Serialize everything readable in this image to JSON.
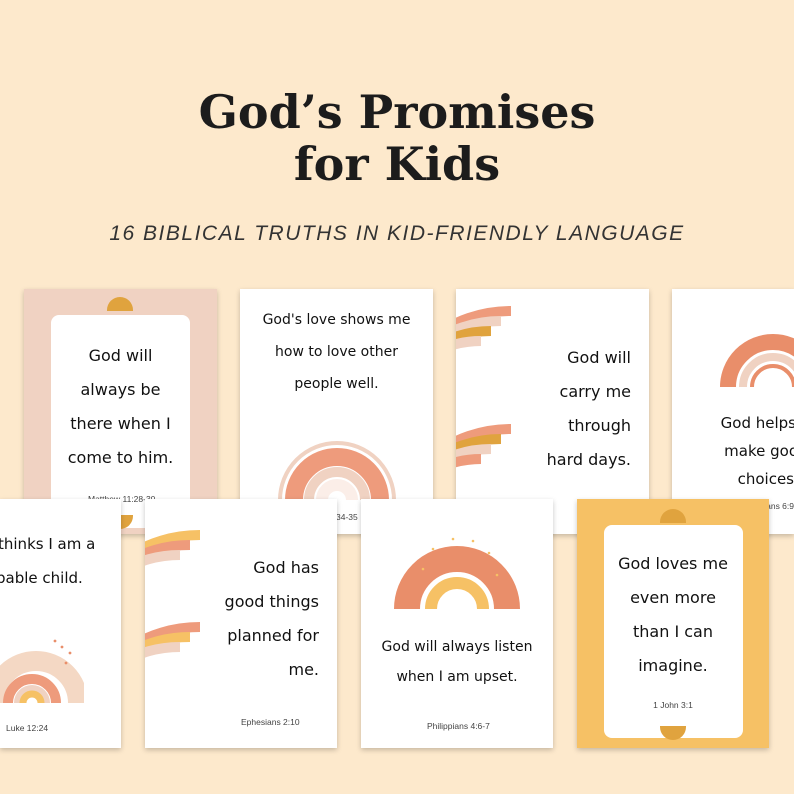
{
  "header": {
    "title_line1": "God’s Promises",
    "title_line2": "for Kids",
    "subtitle": "16 BIBLICAL TRUTHS IN KID-FRIENDLY LANGUAGE"
  },
  "colors": {
    "background": "#fde9cc",
    "peach": "#efb199",
    "mustard": "#e0a33e",
    "sand": "#f0d2c2",
    "yellow_frame": "#f6c165"
  },
  "cards": [
    {
      "lines": [
        "God will",
        "always be",
        "there when I",
        "come to him."
      ],
      "ref": "Matthew 11:28-30"
    },
    {
      "lines": [
        "God's love shows me",
        "how to love other",
        "people well."
      ],
      "ref": "34-35"
    },
    {
      "lines": [
        "God will",
        "carry me",
        "through",
        "hard days."
      ],
      "ref": ""
    },
    {
      "lines": [
        "God helps",
        "make goo",
        "choices"
      ],
      "ref": "ans 6:9"
    },
    {
      "lines": [
        "thinks I am a",
        "pable child."
      ],
      "ref": "Luke 12:24"
    },
    {
      "lines": [
        "God has",
        "good things",
        "planned for",
        "me."
      ],
      "ref": "Ephesians 2:10"
    },
    {
      "lines": [
        "God will always listen",
        "when I am upset."
      ],
      "ref": "Philippians 4:6-7"
    },
    {
      "lines": [
        "God loves me",
        "even more",
        "than I can",
        "imagine."
      ],
      "ref": "1 John 3:1"
    }
  ]
}
